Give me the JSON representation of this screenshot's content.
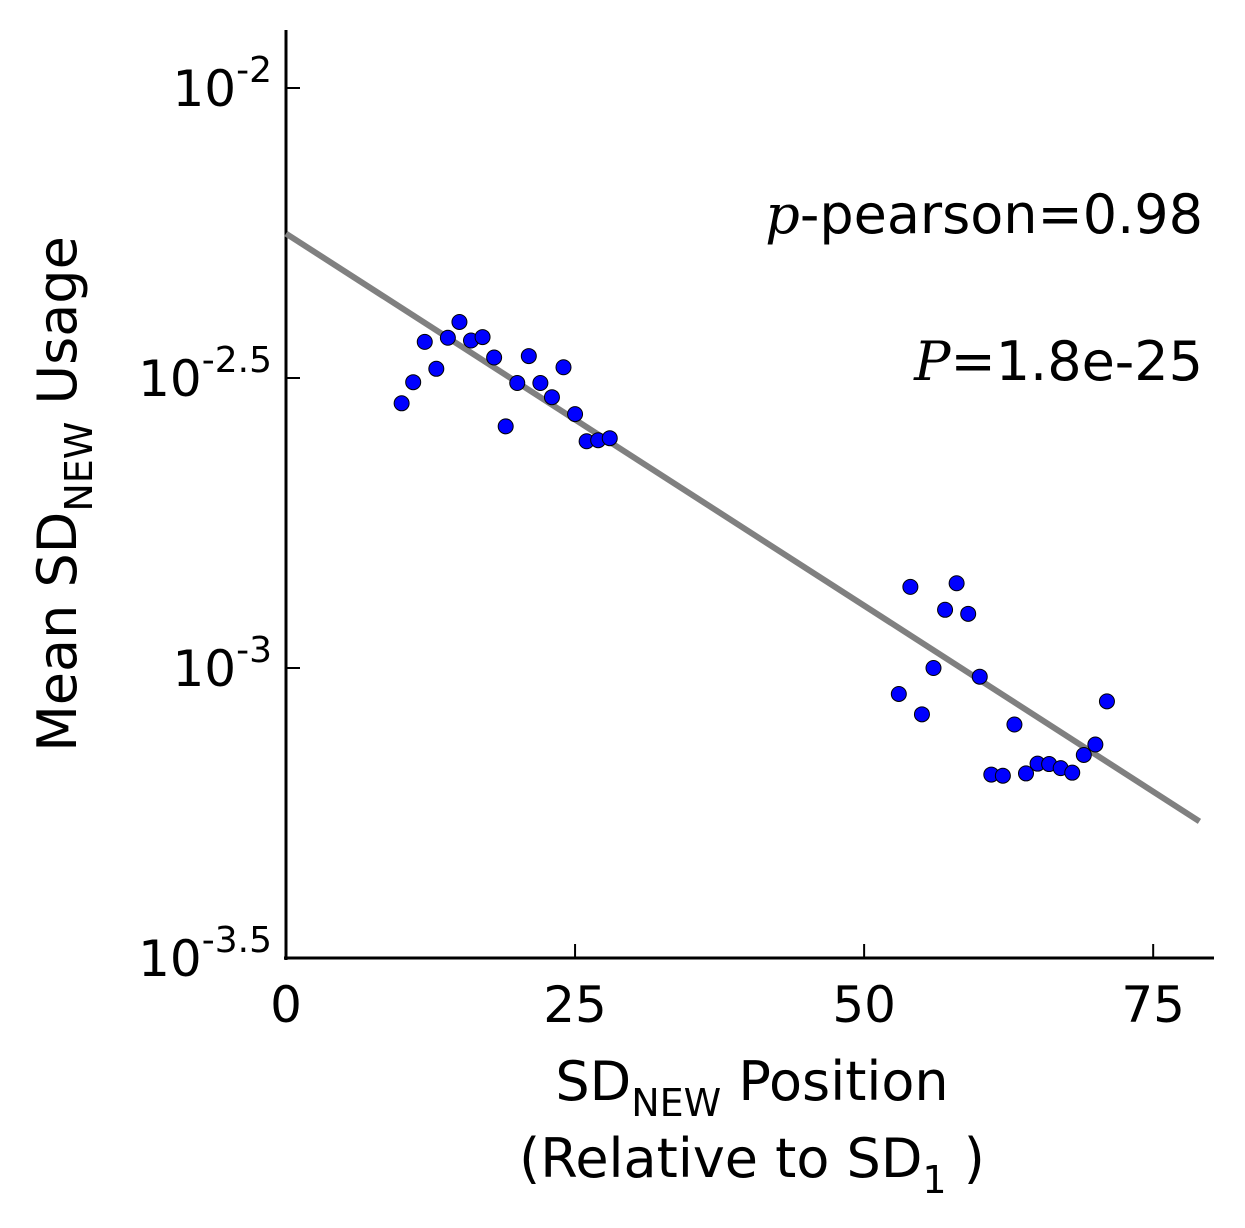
{
  "chart_data": {
    "type": "scatter",
    "title": "",
    "xlabel": {
      "main": "SD",
      "main_sub": "NEW",
      "main_suffix": " Position",
      "line2_prefix": "(Relative to SD",
      "line2_sub": "1",
      "line2_suffix": " )"
    },
    "ylabel": {
      "prefix": "Mean SD",
      "sub": "NEW",
      "suffix": " Usage"
    },
    "xlim": [
      0,
      80
    ],
    "ylim": [
      -3.5,
      -1.9
    ],
    "yscale": "log10",
    "x_ticks": [
      {
        "value": 0,
        "label": "0"
      },
      {
        "value": 25,
        "label": "25"
      },
      {
        "value": 50,
        "label": "50"
      },
      {
        "value": 75,
        "label": "75"
      }
    ],
    "y_ticks": [
      {
        "value": -2,
        "base": "10",
        "exp": "-2"
      },
      {
        "value": -2.5,
        "base": "10",
        "exp": "-2.5"
      },
      {
        "value": -3,
        "base": "10",
        "exp": "-3"
      },
      {
        "value": -3.5,
        "base": "10",
        "exp": "-3.5"
      }
    ],
    "grid": false,
    "scatter": {
      "color": "#0000ff",
      "edge_color": "#000000",
      "points": [
        [
          10,
          0.00286
        ],
        [
          11,
          0.00311
        ],
        [
          12,
          0.00365
        ],
        [
          13,
          0.00328
        ],
        [
          14,
          0.00371
        ],
        [
          15,
          0.00395
        ],
        [
          16,
          0.00367
        ],
        [
          17,
          0.00372
        ],
        [
          18,
          0.00343
        ],
        [
          19,
          0.00261
        ],
        [
          20,
          0.0031
        ],
        [
          21,
          0.00345
        ],
        [
          22,
          0.0031
        ],
        [
          23,
          0.00293
        ],
        [
          24,
          0.0033
        ],
        [
          25,
          0.00274
        ],
        [
          26,
          0.00246
        ],
        [
          27,
          0.00247
        ],
        [
          28,
          0.00249
        ],
        [
          53,
          0.000902
        ],
        [
          54,
          0.00138
        ],
        [
          55,
          0.000832
        ],
        [
          56,
          0.001
        ],
        [
          57,
          0.00126
        ],
        [
          58,
          0.0014
        ],
        [
          59,
          0.00124
        ],
        [
          60,
          0.000966
        ],
        [
          61,
          0.000655
        ],
        [
          62,
          0.000652
        ],
        [
          63,
          0.000799
        ],
        [
          64,
          0.000658
        ],
        [
          65,
          0.000684
        ],
        [
          66,
          0.000683
        ],
        [
          67,
          0.000672
        ],
        [
          68,
          0.00066
        ],
        [
          69,
          0.000708
        ],
        [
          70,
          0.000738
        ],
        [
          71,
          0.000876
        ]
      ]
    },
    "fit_line": {
      "color": "#808080",
      "x": [
        0,
        79
      ],
      "y": [
        0.00561,
        0.000544
      ]
    },
    "annotations": {
      "rho_symbol": "p",
      "rho_text": "-pearson=0.98",
      "p_symbol": "P",
      "p_text": "=1.8e-25"
    }
  }
}
